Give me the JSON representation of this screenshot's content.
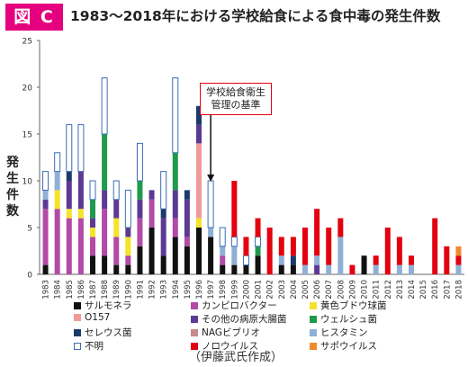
{
  "badge": "図 C",
  "title": "1983〜2018年における学校給食による食中毒の発生件数",
  "ylabel_chars": [
    "発",
    "生",
    "件",
    "数"
  ],
  "annotation": {
    "line1": "学校給食衛生",
    "line2": "管理の基準",
    "year": "1997"
  },
  "credit": "（伊藤武氏作成）",
  "chart_data": {
    "type": "bar",
    "stacked": true,
    "title": "1983〜2018年における学校給食による食中毒の発生件数",
    "ylabel": "発生件数",
    "xlabel": "",
    "ylim": [
      0,
      25
    ],
    "yticks": [
      0,
      5,
      10,
      15,
      20,
      25
    ],
    "grid": false,
    "legend_position": "bottom",
    "categories": [
      "1983",
      "1984",
      "1985",
      "1986",
      "1987",
      "1988",
      "1989",
      "1990",
      "1991",
      "1992",
      "1993",
      "1994",
      "1995",
      "1996",
      "1997",
      "1998",
      "1999",
      "2000",
      "2001",
      "2002",
      "2003",
      "2004",
      "2005",
      "2006",
      "2007",
      "2008",
      "2009",
      "2010",
      "2011",
      "2012",
      "2013",
      "2014",
      "2015",
      "2016",
      "2017",
      "2018"
    ],
    "series": [
      {
        "name": "サルモネラ",
        "color": "#111111",
        "values": [
          1,
          0,
          0,
          0,
          2,
          2,
          1,
          1,
          3,
          5,
          2,
          4,
          3,
          5,
          4,
          1,
          1,
          1,
          2,
          0,
          1,
          1,
          0,
          0,
          0,
          0,
          0,
          2,
          0,
          0,
          0,
          0,
          0,
          0,
          0,
          0
        ]
      },
      {
        "name": "カンピロバクター",
        "color": "#b24aa6",
        "values": [
          6,
          7,
          6,
          6,
          2,
          5,
          3,
          1,
          3,
          3,
          0,
          2,
          1,
          0,
          0,
          1,
          0,
          0,
          0,
          0,
          0,
          0,
          0,
          0,
          0,
          0,
          0,
          0,
          0,
          0,
          0,
          0,
          0,
          0,
          0,
          0
        ]
      },
      {
        "name": "黄色ブドウ球菌",
        "color": "#f5e32a",
        "values": [
          0,
          2,
          1,
          1,
          1,
          0,
          2,
          2,
          0,
          0,
          0,
          0,
          0,
          1,
          0,
          0,
          0,
          0,
          0,
          0,
          0,
          0,
          0,
          0,
          0,
          0,
          0,
          0,
          0,
          0,
          0,
          0,
          0,
          0,
          0,
          0
        ]
      },
      {
        "name": "O157",
        "color": "#f29a9a",
        "values": [
          0,
          0,
          0,
          0,
          0,
          0,
          0,
          0,
          0,
          0,
          0,
          0,
          0,
          8,
          0,
          0,
          0,
          0,
          0,
          0,
          0,
          0,
          0,
          0,
          0,
          0,
          0,
          0,
          0,
          0,
          0,
          0,
          0,
          0,
          0,
          0
        ]
      },
      {
        "name": "その他の病原大腸菌",
        "color": "#5b3a94",
        "values": [
          1,
          0,
          3,
          4,
          1,
          2,
          2,
          1,
          2,
          1,
          4,
          3,
          4,
          2,
          0,
          0,
          0,
          0,
          0,
          0,
          0,
          0,
          0,
          1,
          0,
          0,
          0,
          0,
          0,
          0,
          0,
          0,
          0,
          0,
          0,
          0
        ]
      },
      {
        "name": "ウェルシュ菌",
        "color": "#1f9a4a",
        "values": [
          0,
          0,
          0,
          0,
          2,
          6,
          0,
          0,
          2,
          0,
          0,
          4,
          0,
          0,
          0,
          0,
          0,
          0,
          1,
          0,
          0,
          0,
          0,
          0,
          0,
          0,
          0,
          0,
          0,
          0,
          0,
          0,
          0,
          0,
          0,
          0
        ]
      },
      {
        "name": "セレウス菌",
        "color": "#1b3a6b",
        "values": [
          0,
          0,
          1,
          0,
          0,
          0,
          0,
          0,
          0,
          0,
          1,
          0,
          1,
          2,
          0,
          0,
          0,
          0,
          0,
          0,
          0,
          1,
          0,
          0,
          0,
          0,
          0,
          0,
          0,
          0,
          0,
          0,
          0,
          0,
          0,
          0
        ]
      },
      {
        "name": "NAGビブリオ",
        "color": "#c98a8a",
        "values": [
          0,
          0,
          0,
          0,
          0,
          0,
          0,
          0,
          0,
          0,
          0,
          0,
          0,
          0,
          0,
          0,
          0,
          0,
          0,
          0,
          0,
          0,
          0,
          0,
          0,
          0,
          0,
          0,
          0,
          0,
          0,
          0,
          0,
          0,
          0,
          0
        ]
      },
      {
        "name": "ヒスタミン",
        "color": "#8fb0d6",
        "values": [
          1,
          2,
          0,
          0,
          0,
          0,
          0,
          0,
          0,
          0,
          0,
          0,
          0,
          0,
          1,
          1,
          2,
          0,
          0,
          0,
          1,
          0,
          1,
          1,
          1,
          4,
          0,
          0,
          1,
          0,
          1,
          1,
          0,
          0,
          0,
          1
        ]
      },
      {
        "name": "不明",
        "color": "#ffffff",
        "values": [
          2,
          2,
          5,
          5,
          2,
          6,
          2,
          4,
          4,
          0,
          4,
          8,
          0,
          0,
          5,
          2,
          1,
          1,
          1,
          0,
          0,
          0,
          0,
          0,
          0,
          0,
          0,
          0,
          0,
          0,
          0,
          0,
          0,
          0,
          0,
          0
        ]
      },
      {
        "name": "ノロウイルス",
        "color": "#e3000f",
        "values": [
          0,
          0,
          0,
          0,
          0,
          0,
          0,
          0,
          0,
          0,
          0,
          0,
          0,
          0,
          0,
          0,
          6,
          2,
          2,
          5,
          2,
          2,
          4,
          5,
          4,
          2,
          1,
          0,
          1,
          5,
          3,
          1,
          0,
          6,
          3,
          1
        ]
      },
      {
        "name": "サポウイルス",
        "color": "#f08a2c",
        "values": [
          0,
          0,
          0,
          0,
          0,
          0,
          0,
          0,
          0,
          0,
          0,
          0,
          0,
          0,
          0,
          0,
          0,
          0,
          0,
          0,
          0,
          0,
          0,
          0,
          0,
          0,
          0,
          0,
          0,
          0,
          0,
          0,
          0,
          0,
          0,
          1
        ]
      }
    ],
    "green_top_2018": 1
  }
}
